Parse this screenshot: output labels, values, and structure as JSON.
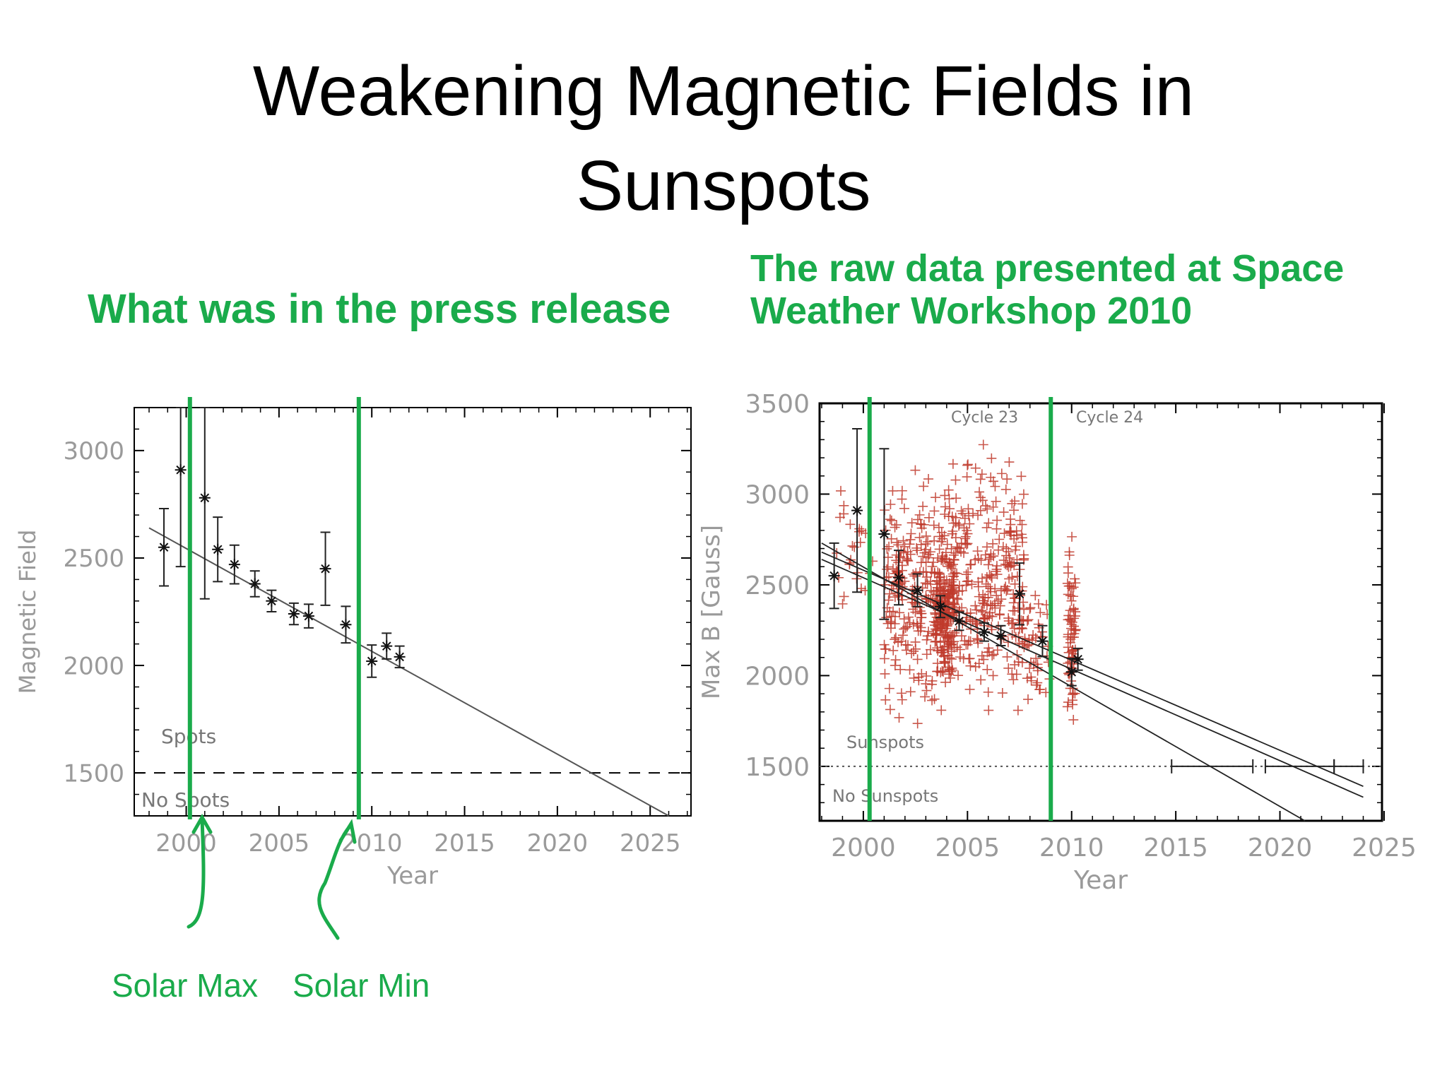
{
  "slide": {
    "title_line1": "Weakening Magnetic Fields in",
    "title_line2": "Sunspots",
    "subtitle_left": "What was in the press release",
    "subtitle_right_line1": "The raw data presented at Space",
    "subtitle_right_line2": "Weather Workshop 2010",
    "annotation_max": "Solar Max",
    "annotation_min": "Solar Min"
  },
  "colors": {
    "accent_green": "#1aab4b",
    "raw_points": "#c0392b",
    "axis": "#000000",
    "tick_text": "#9a9a9a"
  },
  "chart_data": [
    {
      "type": "scatter",
      "xlabel": "Year",
      "ylabel": "Magnetic Field",
      "xlim": [
        1997.2,
        2027.2
      ],
      "ylim": [
        1300,
        3200
      ],
      "xticks": [
        2000,
        2005,
        2010,
        2015,
        2020,
        2025
      ],
      "yticks": [
        1500,
        2000,
        2500,
        3000
      ],
      "points": [
        {
          "x": 1998.8,
          "y": 2550,
          "err": 180
        },
        {
          "x": 1999.7,
          "y": 2910,
          "err": 450
        },
        {
          "x": 2001.0,
          "y": 2780,
          "err": 470
        },
        {
          "x": 2001.7,
          "y": 2540,
          "err": 150
        },
        {
          "x": 2002.6,
          "y": 2470,
          "err": 90
        },
        {
          "x": 2003.7,
          "y": 2380,
          "err": 60
        },
        {
          "x": 2004.6,
          "y": 2300,
          "err": 50
        },
        {
          "x": 2005.8,
          "y": 2240,
          "err": 50
        },
        {
          "x": 2006.6,
          "y": 2230,
          "err": 55
        },
        {
          "x": 2007.5,
          "y": 2450,
          "err": 170
        },
        {
          "x": 2008.6,
          "y": 2190,
          "err": 85
        },
        {
          "x": 2010.0,
          "y": 2020,
          "err": 75
        },
        {
          "x": 2010.8,
          "y": 2090,
          "err": 60
        },
        {
          "x": 2011.5,
          "y": 2040,
          "err": 50
        }
      ],
      "trend_line": [
        [
          1998.0,
          2640
        ],
        [
          2026.0,
          1300
        ]
      ],
      "threshold": 1500,
      "regions": [
        "Spots",
        "No Spots"
      ],
      "markers": [
        {
          "x": 2000.2,
          "label": "Solar Max"
        },
        {
          "x": 2009.3,
          "label": "Solar Min"
        }
      ]
    },
    {
      "type": "scatter",
      "xlabel": "Year",
      "ylabel": "Max B [Gauss]",
      "xlim": [
        1997.9,
        2024.9
      ],
      "ylim": [
        1200,
        3500
      ],
      "xticks": [
        2000,
        2005,
        2010,
        2015,
        2020,
        2025
      ],
      "yticks": [
        1500,
        2000,
        2500,
        3000,
        3500
      ],
      "cycle_labels": [
        "Cycle 23",
        "Cycle 24"
      ],
      "regions": [
        "Sunspots",
        "No Sunspots"
      ],
      "threshold": 1500,
      "point_clusters": [
        {
          "x_range": [
            1998.5,
            2000.5
          ],
          "y_range": [
            2100,
            3200
          ],
          "count": 25
        },
        {
          "x_range": [
            2001.0,
            2004.0
          ],
          "y_range": [
            1600,
            3300
          ],
          "count": 260
        },
        {
          "x_range": [
            2003.4,
            2004.4
          ],
          "y_range": [
            1900,
            2800
          ],
          "count": 160
        },
        {
          "x_range": [
            2004.0,
            2007.8
          ],
          "y_range": [
            1550,
            3400
          ],
          "count": 320
        },
        {
          "x_range": [
            2007.8,
            2009.0
          ],
          "y_range": [
            1700,
            2600
          ],
          "count": 40
        },
        {
          "x_range": [
            2009.8,
            2010.2
          ],
          "y_range": [
            1550,
            2850
          ],
          "count": 70
        }
      ],
      "points": [
        {
          "x": 1998.6,
          "y": 2550,
          "err": 180
        },
        {
          "x": 1999.7,
          "y": 2910,
          "err": 450
        },
        {
          "x": 2001.0,
          "y": 2780,
          "err": 470
        },
        {
          "x": 2001.7,
          "y": 2540,
          "err": 150
        },
        {
          "x": 2002.6,
          "y": 2470,
          "err": 90
        },
        {
          "x": 2003.7,
          "y": 2380,
          "err": 60
        },
        {
          "x": 2004.6,
          "y": 2300,
          "err": 50
        },
        {
          "x": 2005.8,
          "y": 2240,
          "err": 50
        },
        {
          "x": 2006.6,
          "y": 2220,
          "err": 55
        },
        {
          "x": 2007.5,
          "y": 2450,
          "err": 170
        },
        {
          "x": 2008.6,
          "y": 2190,
          "err": 85
        },
        {
          "x": 2010.0,
          "y": 2020,
          "err": 75
        },
        {
          "x": 2010.3,
          "y": 2090,
          "err": 60
        }
      ],
      "trend_lines": [
        [
          [
            1998.0,
            2680
          ],
          [
            2024.0,
            1390
          ]
        ],
        [
          [
            1998.0,
            2640
          ],
          [
            2024.0,
            1330
          ]
        ],
        [
          [
            1998.0,
            2730
          ],
          [
            2021.2,
            1200
          ]
        ]
      ],
      "crossing_bars": [
        [
          2014.8,
          2018.7
        ],
        [
          2019.3,
          2022.6
        ],
        [
          2022.6,
          2024.0
        ]
      ],
      "markers": [
        {
          "x": 2000.3
        },
        {
          "x": 2009.0
        }
      ]
    }
  ]
}
